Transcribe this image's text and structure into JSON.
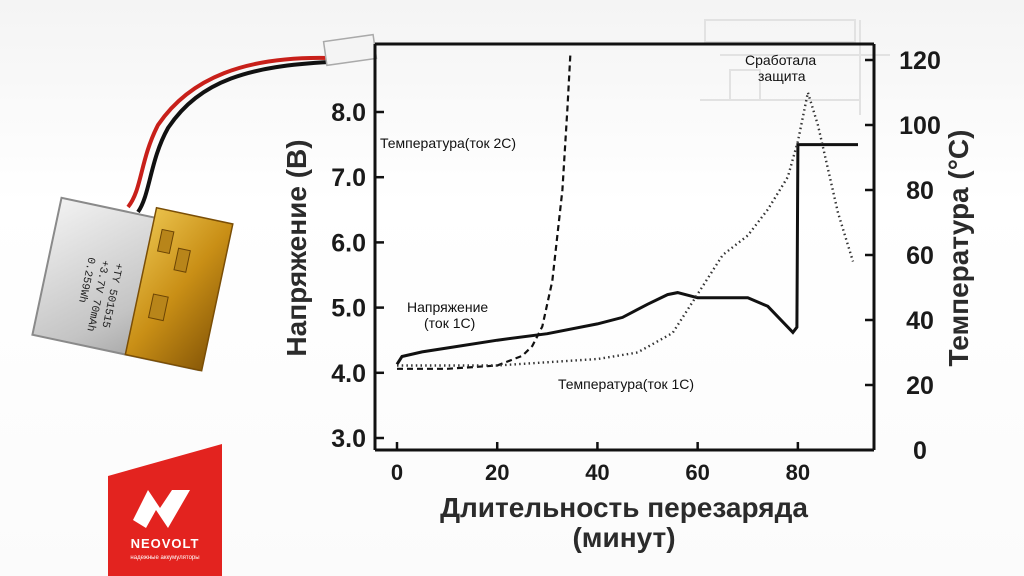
{
  "chart_data": {
    "type": "line",
    "xlabel_line1": "Длительность перезаряда",
    "xlabel_line2": "(минут)",
    "ylabel_left": "Напряжение (В)",
    "ylabel_right": "Температура (°С)",
    "xlim": [
      0,
      92
    ],
    "ylim_left": [
      3.0,
      8.6
    ],
    "ylim_right": [
      0,
      125
    ],
    "x_ticks": [
      "0",
      "20",
      "40",
      "60",
      "80"
    ],
    "y_left_ticks": [
      "3.0",
      "4.0",
      "5.0",
      "6.0",
      "7.0",
      "8.0"
    ],
    "y_right_ticks": [
      "0",
      "20",
      "40",
      "60",
      "80",
      "100",
      "120"
    ],
    "series": [
      {
        "name": "Напряжение (ток 1С)",
        "axis": "left",
        "style": "solid",
        "points": [
          [
            0,
            4.13
          ],
          [
            1,
            4.25
          ],
          [
            5,
            4.32
          ],
          [
            10,
            4.38
          ],
          [
            20,
            4.5
          ],
          [
            30,
            4.6
          ],
          [
            40,
            4.75
          ],
          [
            45,
            4.85
          ],
          [
            50,
            5.05
          ],
          [
            54,
            5.2
          ],
          [
            56,
            5.23
          ],
          [
            60,
            5.15
          ],
          [
            70,
            5.15
          ],
          [
            74,
            5.02
          ],
          [
            77,
            4.78
          ],
          [
            79,
            4.62
          ],
          [
            79.8,
            4.7
          ],
          [
            80,
            7.5
          ],
          [
            92,
            7.5
          ]
        ]
      },
      {
        "name": "Температура(ток 2С)",
        "axis": "right",
        "style": "dashed",
        "points": [
          [
            0,
            25
          ],
          [
            10,
            25
          ],
          [
            20,
            26
          ],
          [
            25,
            29
          ],
          [
            27,
            32
          ],
          [
            29,
            38
          ],
          [
            31,
            52
          ],
          [
            33,
            80
          ],
          [
            34,
            105
          ],
          [
            34.6,
            122
          ]
        ]
      },
      {
        "name": "Температура(ток 1С)",
        "axis": "right",
        "style": "dotted",
        "points": [
          [
            0,
            26
          ],
          [
            20,
            26
          ],
          [
            40,
            28
          ],
          [
            48,
            30
          ],
          [
            55,
            36
          ],
          [
            60,
            48
          ],
          [
            65,
            60
          ],
          [
            70,
            66
          ],
          [
            74,
            74
          ],
          [
            78,
            84
          ],
          [
            80,
            95
          ],
          [
            82,
            110
          ],
          [
            84,
            100
          ],
          [
            88,
            73
          ],
          [
            91,
            58
          ]
        ]
      }
    ],
    "annotations": {
      "temp_2c": "Температура(ток 2С)",
      "voltage_line1": "Напряжение",
      "voltage_line2": "(ток 1С)",
      "temp_1c": "Температура(ток 1С)",
      "protection_line1": "Сработала",
      "protection_line2": "защита"
    }
  },
  "battery": {
    "label_line1": "+TY 501515",
    "label_line2": "+3.7V 70mAh",
    "label_line3": "0.259Wh"
  },
  "logo": {
    "brand": "NEOVOLT",
    "tagline": "надежные аккумуляторы",
    "color": "#e3231f"
  }
}
